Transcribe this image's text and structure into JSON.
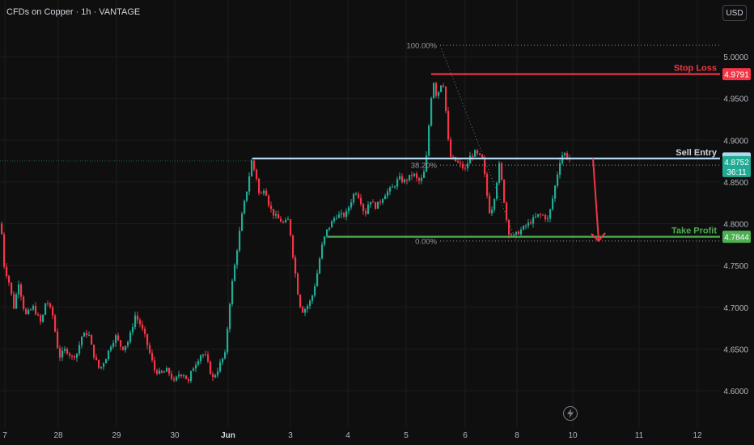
{
  "header": {
    "title": "CFDs on Copper · 1h · VANTAGE",
    "currency_button": "USD"
  },
  "colors": {
    "background": "#0f0f0f",
    "bull": "#22ab94",
    "bear": "#f23645",
    "grid": "#1c1c1c",
    "stop": "#f23645",
    "entry": "#b2d8f0",
    "target": "#4caf50",
    "arrow": "#f23645",
    "axis_text": "#b2b5be"
  },
  "icons": {
    "lightning": "lightning-icon"
  },
  "chart_data": {
    "type": "candlestick",
    "title": "CFDs on Copper · 1h · VANTAGE",
    "x_ticks": [
      "7",
      "28",
      "29",
      "30",
      "Jun",
      "3",
      "4",
      "5",
      "6",
      "7",
      "8",
      "9",
      "10",
      "11",
      "12"
    ],
    "y_ticks": [
      "5.0000",
      "4.9500",
      "4.9000",
      "4.8500",
      "4.8000",
      "4.7500",
      "4.7000",
      "4.6500",
      "4.6000"
    ],
    "ylim": [
      4.59,
      5.03
    ],
    "grid": true,
    "levels": {
      "stop_loss": {
        "label": "Stop Loss",
        "value": 4.9791,
        "tag": "4.9791"
      },
      "sell_entry": {
        "label": "Sell Entry",
        "value": 4.8781,
        "tag": "4.8781"
      },
      "take_profit": {
        "label": "Take Profit",
        "value": 4.7844,
        "tag": "4.7844"
      }
    },
    "last_price": {
      "tag": "4.8752",
      "countdown": "36:11",
      "value": 4.8752
    },
    "fibonacci": [
      {
        "label": "100.00%",
        "value": 5.0135
      },
      {
        "label": "38.20%",
        "value": 4.8701
      },
      {
        "label": "0.00%",
        "value": 4.7793
      }
    ],
    "projection": {
      "from": 4.8781,
      "to": 4.7793
    },
    "waypoints": [
      [
        0,
        4.8
      ],
      [
        4,
        4.75
      ],
      [
        10,
        4.73
      ],
      [
        16,
        4.7
      ],
      [
        22,
        4.73
      ],
      [
        30,
        4.69
      ],
      [
        40,
        4.7
      ],
      [
        50,
        4.68
      ],
      [
        56,
        4.71
      ],
      [
        64,
        4.69
      ],
      [
        72,
        4.64
      ],
      [
        80,
        4.65
      ],
      [
        88,
        4.64
      ],
      [
        94,
        4.645
      ],
      [
        100,
        4.665
      ],
      [
        108,
        4.67
      ],
      [
        114,
        4.645
      ],
      [
        122,
        4.625
      ],
      [
        130,
        4.64
      ],
      [
        136,
        4.655
      ],
      [
        142,
        4.665
      ],
      [
        150,
        4.65
      ],
      [
        158,
        4.66
      ],
      [
        166,
        4.69
      ],
      [
        172,
        4.68
      ],
      [
        178,
        4.665
      ],
      [
        184,
        4.645
      ],
      [
        190,
        4.625
      ],
      [
        198,
        4.62
      ],
      [
        206,
        4.625
      ],
      [
        214,
        4.61
      ],
      [
        220,
        4.62
      ],
      [
        226,
        4.62
      ],
      [
        232,
        4.61
      ],
      [
        236,
        4.625
      ],
      [
        242,
        4.635
      ],
      [
        248,
        4.645
      ],
      [
        254,
        4.64
      ],
      [
        258,
        4.625
      ],
      [
        262,
        4.615
      ],
      [
        268,
        4.625
      ],
      [
        272,
        4.635
      ],
      [
        278,
        4.645
      ],
      [
        281,
        4.69
      ],
      [
        286,
        4.73
      ],
      [
        292,
        4.77
      ],
      [
        298,
        4.81
      ],
      [
        304,
        4.84
      ],
      [
        310,
        4.875
      ],
      [
        316,
        4.855
      ],
      [
        320,
        4.83
      ],
      [
        326,
        4.845
      ],
      [
        332,
        4.82
      ],
      [
        338,
        4.81
      ],
      [
        344,
        4.805
      ],
      [
        350,
        4.8
      ],
      [
        356,
        4.805
      ],
      [
        360,
        4.77
      ],
      [
        364,
        4.74
      ],
      [
        368,
        4.71
      ],
      [
        372,
        4.695
      ],
      [
        378,
        4.7
      ],
      [
        384,
        4.71
      ],
      [
        390,
        4.735
      ],
      [
        396,
        4.77
      ],
      [
        402,
        4.79
      ],
      [
        408,
        4.8
      ],
      [
        414,
        4.81
      ],
      [
        420,
        4.81
      ],
      [
        426,
        4.81
      ],
      [
        432,
        4.825
      ],
      [
        438,
        4.84
      ],
      [
        444,
        4.83
      ],
      [
        450,
        4.81
      ],
      [
        456,
        4.83
      ],
      [
        462,
        4.82
      ],
      [
        468,
        4.825
      ],
      [
        474,
        4.835
      ],
      [
        480,
        4.84
      ],
      [
        486,
        4.845
      ],
      [
        492,
        4.855
      ],
      [
        498,
        4.85
      ],
      [
        504,
        4.855
      ],
      [
        510,
        4.86
      ],
      [
        516,
        4.85
      ],
      [
        522,
        4.855
      ],
      [
        526,
        4.88
      ],
      [
        530,
        4.93
      ],
      [
        534,
        4.975
      ],
      [
        538,
        4.955
      ],
      [
        542,
        4.96
      ],
      [
        546,
        4.975
      ],
      [
        549,
        4.95
      ],
      [
        552,
        4.905
      ],
      [
        556,
        4.88
      ],
      [
        562,
        4.875
      ],
      [
        568,
        4.87
      ],
      [
        574,
        4.865
      ],
      [
        580,
        4.88
      ],
      [
        586,
        4.885
      ],
      [
        592,
        4.88
      ],
      [
        596,
        4.875
      ],
      [
        600,
        4.84
      ],
      [
        604,
        4.815
      ],
      [
        608,
        4.82
      ],
      [
        612,
        4.845
      ],
      [
        616,
        4.87
      ],
      [
        620,
        4.845
      ],
      [
        624,
        4.81
      ],
      [
        628,
        4.79
      ],
      [
        634,
        4.785
      ],
      [
        640,
        4.79
      ],
      [
        646,
        4.795
      ],
      [
        652,
        4.8
      ],
      [
        658,
        4.805
      ],
      [
        664,
        4.81
      ],
      [
        670,
        4.81
      ],
      [
        676,
        4.805
      ],
      [
        680,
        4.82
      ],
      [
        684,
        4.84
      ],
      [
        688,
        4.86
      ],
      [
        692,
        4.88
      ],
      [
        696,
        4.885
      ],
      [
        700,
        4.88
      ],
      [
        705,
        4.8752
      ]
    ]
  }
}
